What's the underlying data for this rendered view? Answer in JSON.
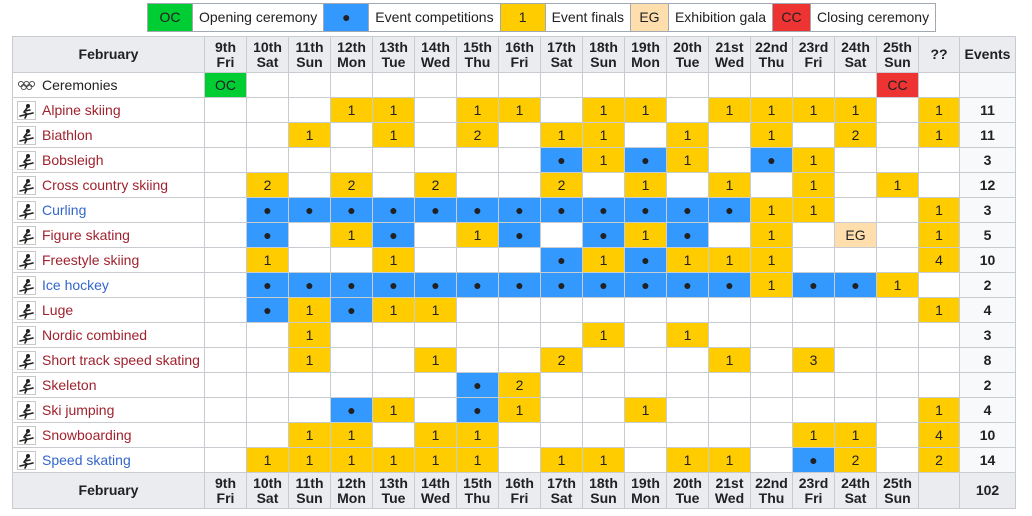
{
  "colors": {
    "opening": "#00cc33",
    "competition": "#3399ff",
    "final": "#ffcc00",
    "gala": "#ffdead",
    "closing": "#ee3333"
  },
  "legend": [
    {
      "key": "OC",
      "label": "Opening ceremony",
      "kind": "oc"
    },
    {
      "key": "●",
      "label": "Event competitions",
      "kind": "comp"
    },
    {
      "key": "1",
      "label": "Event finals",
      "kind": "fin"
    },
    {
      "key": "EG",
      "label": "Exhibition gala",
      "kind": "eg"
    },
    {
      "key": "CC",
      "label": "Closing ceremony",
      "kind": "cc"
    }
  ],
  "header": {
    "month": "February",
    "unknown_label": "??",
    "events_label": "Events"
  },
  "days": [
    {
      "date": "9th",
      "dow": "Fri"
    },
    {
      "date": "10th",
      "dow": "Sat"
    },
    {
      "date": "11th",
      "dow": "Sun"
    },
    {
      "date": "12th",
      "dow": "Mon"
    },
    {
      "date": "13th",
      "dow": "Tue"
    },
    {
      "date": "14th",
      "dow": "Wed"
    },
    {
      "date": "15th",
      "dow": "Thu"
    },
    {
      "date": "16th",
      "dow": "Fri"
    },
    {
      "date": "17th",
      "dow": "Sat"
    },
    {
      "date": "18th",
      "dow": "Sun"
    },
    {
      "date": "19th",
      "dow": "Mon"
    },
    {
      "date": "20th",
      "dow": "Tue"
    },
    {
      "date": "21st",
      "dow": "Wed"
    },
    {
      "date": "22nd",
      "dow": "Thu"
    },
    {
      "date": "23rd",
      "dow": "Fri"
    },
    {
      "date": "24th",
      "dow": "Sat"
    },
    {
      "date": "25th",
      "dow": "Sun"
    }
  ],
  "sports": [
    {
      "name": "Ceremonies",
      "icon": "olympic-rings-icon",
      "link": "plain",
      "cells": [
        "OC",
        "",
        "",
        "",
        "",
        "",
        "",
        "",
        "",
        "",
        "",
        "",
        "",
        "",
        "",
        "",
        "CC",
        ""
      ],
      "total": ""
    },
    {
      "name": "Alpine skiing",
      "icon": "alpine-skiing-icon",
      "link": "red",
      "cells": [
        "",
        "",
        "",
        "1",
        "1",
        "",
        "1",
        "1",
        "",
        "1",
        "1",
        "",
        "1",
        "1",
        "1",
        "1",
        "",
        "1"
      ],
      "total": "11"
    },
    {
      "name": "Biathlon",
      "icon": "biathlon-icon",
      "link": "red",
      "cells": [
        "",
        "",
        "1",
        "",
        "1",
        "",
        "2",
        "",
        "1",
        "1",
        "",
        "1",
        "",
        "1",
        "",
        "2",
        "",
        "1"
      ],
      "total": "11"
    },
    {
      "name": "Bobsleigh",
      "icon": "bobsleigh-icon",
      "link": "red",
      "cells": [
        "",
        "",
        "",
        "",
        "",
        "",
        "",
        "",
        "●",
        "1",
        "●",
        "1",
        "",
        "●",
        "1",
        "",
        "",
        ""
      ],
      "total": "3"
    },
    {
      "name": "Cross country skiing",
      "icon": "cross-country-skiing-icon",
      "link": "red",
      "cells": [
        "",
        "2",
        "",
        "2",
        "",
        "2",
        "",
        "",
        "2",
        "",
        "1",
        "",
        "1",
        "",
        "1",
        "",
        "1",
        ""
      ],
      "total": "12"
    },
    {
      "name": "Curling",
      "icon": "curling-icon",
      "link": "blue",
      "cells": [
        "",
        "●",
        "●",
        "●",
        "●",
        "●",
        "●",
        "●",
        "●",
        "●",
        "●",
        "●",
        "●",
        "1",
        "1",
        "",
        "",
        "1"
      ],
      "total": "3"
    },
    {
      "name": "Figure skating",
      "icon": "figure-skating-icon",
      "link": "red",
      "cells": [
        "",
        "●",
        "",
        "1",
        "●",
        "",
        "1",
        "●",
        "",
        "●",
        "1",
        "●",
        "",
        "1",
        "",
        "EG",
        "",
        "1"
      ],
      "total": "5"
    },
    {
      "name": "Freestyle skiing",
      "icon": "freestyle-skiing-icon",
      "link": "red",
      "cells": [
        "",
        "1",
        "",
        "",
        "1",
        "",
        "",
        "",
        "●",
        "1",
        "●",
        "1",
        "1",
        "1",
        "",
        "",
        "",
        "4"
      ],
      "total": "10"
    },
    {
      "name": "Ice hockey",
      "icon": "ice-hockey-icon",
      "link": "blue",
      "cells": [
        "",
        "●",
        "●",
        "●",
        "●",
        "●",
        "●",
        "●",
        "●",
        "●",
        "●",
        "●",
        "●",
        "1",
        "●",
        "●",
        "1",
        ""
      ],
      "total": "2"
    },
    {
      "name": "Luge",
      "icon": "luge-icon",
      "link": "red",
      "cells": [
        "",
        "●",
        "1",
        "●",
        "1",
        "1",
        "",
        "",
        "",
        "",
        "",
        "",
        "",
        "",
        "",
        "",
        "",
        "1"
      ],
      "total": "4"
    },
    {
      "name": "Nordic combined",
      "icon": "nordic-combined-icon",
      "link": "red",
      "cells": [
        "",
        "",
        "1",
        "",
        "",
        "",
        "",
        "",
        "",
        "1",
        "",
        "1",
        "",
        "",
        "",
        "",
        "",
        ""
      ],
      "total": "3"
    },
    {
      "name": "Short track speed skating",
      "icon": "short-track-icon",
      "link": "red",
      "cells": [
        "",
        "",
        "1",
        "",
        "",
        "1",
        "",
        "",
        "2",
        "",
        "",
        "",
        "1",
        "",
        "3",
        "",
        "",
        ""
      ],
      "total": "8"
    },
    {
      "name": "Skeleton",
      "icon": "skeleton-icon",
      "link": "red",
      "cells": [
        "",
        "",
        "",
        "",
        "",
        "",
        "●",
        "2",
        "",
        "",
        "",
        "",
        "",
        "",
        "",
        "",
        "",
        ""
      ],
      "total": "2"
    },
    {
      "name": "Ski jumping",
      "icon": "ski-jumping-icon",
      "link": "red",
      "cells": [
        "",
        "",
        "",
        "●",
        "1",
        "",
        "●",
        "1",
        "",
        "",
        "1",
        "",
        "",
        "",
        "",
        "",
        "",
        "1"
      ],
      "total": "4"
    },
    {
      "name": "Snowboarding",
      "icon": "snowboarding-icon",
      "link": "red",
      "cells": [
        "",
        "",
        "1",
        "1",
        "",
        "1",
        "1",
        "",
        "",
        "",
        "",
        "",
        "",
        "",
        "1",
        "1",
        "",
        "4"
      ],
      "total": "10"
    },
    {
      "name": "Speed skating",
      "icon": "speed-skating-icon",
      "link": "blue",
      "cells": [
        "",
        "1",
        "1",
        "1",
        "1",
        "1",
        "1",
        "",
        "1",
        "1",
        "",
        "1",
        "1",
        "",
        "●",
        "2",
        "",
        "2"
      ],
      "total": "14"
    }
  ],
  "grand_total": "102"
}
